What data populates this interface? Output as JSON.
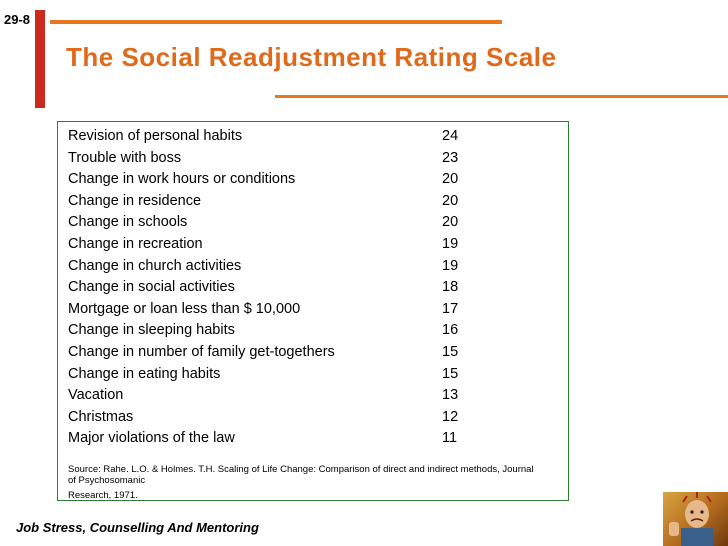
{
  "slide": {
    "number": "29-8",
    "title": "The Social Readjustment Rating Scale",
    "footer": "Job Stress, Counselling And Mentoring"
  },
  "table": {
    "rows": [
      {
        "event": "Revision of personal habits",
        "value": "24"
      },
      {
        "event": "Trouble with boss",
        "value": "23"
      },
      {
        "event": "Change in work hours or conditions",
        "value": "20"
      },
      {
        "event": "Change in residence",
        "value": "20"
      },
      {
        "event": "Change in schools",
        "value": "20"
      },
      {
        "event": "Change in recreation",
        "value": "19"
      },
      {
        "event": "Change in church activities",
        "value": "19"
      },
      {
        "event": "Change in social activities",
        "value": "18"
      },
      {
        "event": "Mortgage or loan less than $ 10,000",
        "value": "17"
      },
      {
        "event": "Change in sleeping habits",
        "value": "16"
      },
      {
        "event": "Change in number of family get-togethers",
        "value": "15"
      },
      {
        "event": "Change in eating habits",
        "value": "15"
      },
      {
        "event": "Vacation",
        "value": "13"
      },
      {
        "event": "Christmas",
        "value": "12"
      },
      {
        "event": "Major violations of the law",
        "value": "11"
      }
    ],
    "source_line1": "Source: Rahe. L.O. & Holmes. T.H. Scaling of Life Change: Comparison of direct and indirect methods, Journal",
    "source_line2": "of Psychosomanic",
    "source_line3": "Research, 1971."
  },
  "colors": {
    "accent_orange": "#e87722",
    "title_orange": "#e06a1b",
    "bar_red": "#cc2a1c",
    "table_border": "#2e7d32"
  },
  "icons": {
    "logo": "stressed-person-logo"
  }
}
